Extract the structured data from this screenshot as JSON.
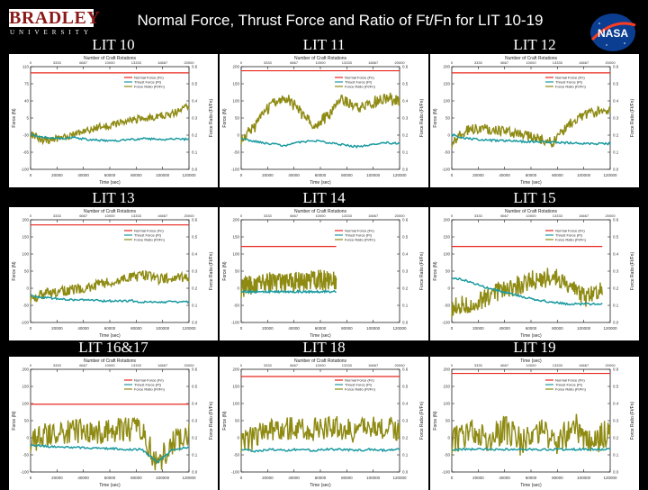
{
  "header": {
    "logo_word": "BRADLEY",
    "logo_sub": "UNIVERSITY",
    "title": "Normal Force, Thrust Force and Ratio of Ft/Fn for LIT 10-19",
    "nasa_text": "NASA"
  },
  "colors": {
    "normal_force": "#e8281e",
    "thrust_force": "#1a9aa0",
    "force_ratio": "#8e8a12",
    "background": "#000000",
    "plot_background": "#ffffff"
  },
  "chart_data": [
    {
      "label": "LIT 10",
      "type": "line",
      "top_axis": "Number of Craft Rotations",
      "xlabel": "Time (sec)",
      "ylabel": "Force (N)",
      "ylabel_right": "Force Ratio (Ft/Fn)",
      "legend": [
        "Normal Force (Fn)",
        "Thrust Force (Ft)",
        "Force Ratio (Ft/Fn)"
      ],
      "x": [
        0,
        120000
      ],
      "ylim": [
        -100,
        110
      ],
      "normal": 0.94,
      "thrust": [
        0.34,
        0.31,
        0.3,
        0.31,
        0.29,
        0.28,
        0.28,
        0.29,
        0.3,
        0.29,
        0.3,
        0.29
      ],
      "ratio": [
        0.34,
        0.28,
        0.3,
        0.34,
        0.38,
        0.42,
        0.44,
        0.48,
        0.5,
        0.52,
        0.55,
        0.62
      ],
      "noise": 0.035,
      "span": [
        0,
        1
      ]
    },
    {
      "label": "LIT 11",
      "type": "line",
      "top_axis": "Number of Craft Rotations",
      "xlabel": "Time (sec)",
      "ylabel": "Force (N)",
      "ylabel_right": "Force Ratio (Ft/Fn)",
      "legend": [
        "Normal Force (Fn)",
        "Thrust Force (Ft)",
        "Force Ratio (Ft/Fn)"
      ],
      "x": [
        0,
        120000
      ],
      "ylim": [
        -100,
        200
      ],
      "normal": 0.96,
      "thrust": [
        0.3,
        0.27,
        0.25,
        0.23,
        0.26,
        0.28,
        0.26,
        0.24,
        0.22,
        0.24,
        0.26,
        0.25
      ],
      "ratio": [
        0.3,
        0.42,
        0.62,
        0.72,
        0.58,
        0.42,
        0.52,
        0.68,
        0.6,
        0.64,
        0.7,
        0.66
      ],
      "noise": 0.06,
      "span": [
        0,
        1
      ]
    },
    {
      "label": "LIT 12",
      "type": "line",
      "top_axis": "Number of Craft Rotations",
      "xlabel": "Time (sec)",
      "ylabel": "Force (N)",
      "ylabel_right": "Force Ratio (Ft/Fn)",
      "legend": [
        "Normal Force (Fn)",
        "Thrust Force (Ft)",
        "Force Ratio (Ft/Fn)"
      ],
      "x": [
        0,
        120000
      ],
      "ylim": [
        -100,
        200
      ],
      "normal": 0.94,
      "thrust": [
        0.34,
        0.3,
        0.29,
        0.28,
        0.28,
        0.27,
        0.27,
        0.26,
        0.26,
        0.25,
        0.25,
        0.25
      ],
      "ratio": [
        0.26,
        0.38,
        0.4,
        0.38,
        0.36,
        0.34,
        0.3,
        0.26,
        0.42,
        0.52,
        0.56,
        0.58
      ],
      "noise": 0.05,
      "span": [
        0,
        1
      ]
    },
    {
      "label": "LIT 13",
      "type": "line",
      "top_axis": "Number of Craft Rotations",
      "xlabel": "Time (sec)",
      "ylabel": "Force (N)",
      "ylabel_right": "Force Ratio (Ft/Fn)",
      "legend": [
        "Normal Force (Fn)",
        "Thrust Force (Ft)",
        "Force Ratio (Ft/Fn)"
      ],
      "x": [
        0,
        120000
      ],
      "ylim": [
        -100,
        200
      ],
      "normal": 0.95,
      "thrust": [
        0.26,
        0.24,
        0.23,
        0.22,
        0.22,
        0.21,
        0.21,
        0.21,
        0.2,
        0.2,
        0.2,
        0.2
      ],
      "ratio": [
        0.24,
        0.28,
        0.3,
        0.32,
        0.34,
        0.38,
        0.4,
        0.44,
        0.46,
        0.42,
        0.44,
        0.44
      ],
      "noise": 0.05,
      "span": [
        0,
        1
      ]
    },
    {
      "label": "LIT 14",
      "type": "line",
      "top_axis": "Number of Craft Rotations",
      "xlabel": "Time (sec)",
      "ylabel": "Force (N)",
      "ylabel_right": "Force Ratio (Ft/Fn)",
      "legend": [
        "Normal Force (Fn)",
        "Thrust Force (Ft)",
        "Force Ratio (Ft/Fn)"
      ],
      "x": [
        0,
        120000
      ],
      "ylim": [
        -100,
        200
      ],
      "normal": 0.74,
      "thrust": [
        0.3,
        0.3,
        0.3,
        0.3,
        0.3
      ],
      "ratio": [
        0.34,
        0.4,
        0.38,
        0.42,
        0.4
      ],
      "noise": 0.1,
      "span": [
        0,
        0.6
      ]
    },
    {
      "label": "LIT 15",
      "type": "line",
      "top_axis": "Number of Craft Rotations",
      "xlabel": "Time (sec)",
      "ylabel": "Force (N)",
      "ylabel_right": "Force Ratio (Ft/Fn)",
      "legend": [
        "Normal Force (Fn)",
        "Thrust Force (Ft)",
        "Force Ratio (Ft/Fn)"
      ],
      "x": [
        0,
        120000
      ],
      "ylim": [
        -100,
        200
      ],
      "normal": 0.74,
      "thrust": [
        0.44,
        0.4,
        0.34,
        0.3,
        0.26,
        0.22,
        0.2,
        0.18,
        0.18,
        0.18
      ],
      "ratio": [
        0.14,
        0.18,
        0.24,
        0.3,
        0.36,
        0.42,
        0.44,
        0.38,
        0.24,
        0.3
      ],
      "noise": 0.1,
      "span": [
        0,
        0.95
      ]
    },
    {
      "label": "LIT 16&17",
      "type": "line",
      "top_axis": "Number of Craft Rotations",
      "xlabel": "Time (sec)",
      "ylabel": "Force (N)",
      "ylabel_right": "Force Ratio (Ft/Fn)",
      "legend": [
        "Normal Force (Fn)",
        "Thrust Force (Ft)",
        "Force Ratio (Ft/Fn)"
      ],
      "x": [
        0,
        120000
      ],
      "ylim": [
        -100,
        200
      ],
      "normal": 0.66,
      "thrust": [
        0.26,
        0.25,
        0.24,
        0.24,
        0.23,
        0.23,
        0.22,
        0.22,
        0.1,
        0.22,
        0.24
      ],
      "ratio": [
        0.3,
        0.36,
        0.38,
        0.4,
        0.38,
        0.4,
        0.42,
        0.4,
        0.08,
        0.3,
        0.36
      ],
      "noise": 0.12,
      "span": [
        0,
        1
      ]
    },
    {
      "label": "LIT 18",
      "type": "line",
      "top_axis": "Number of Craft Rotations",
      "xlabel": "Time (sec)",
      "ylabel": "Force (N)",
      "ylabel_right": "Force Ratio (Ft/Fn)",
      "legend": [
        "Normal Force (Fn)",
        "Thrust Force (Ft)",
        "Force Ratio (Ft/Fn)"
      ],
      "x": [
        0,
        120000
      ],
      "ylim": [
        -100,
        200
      ],
      "normal": 0.93,
      "thrust": [
        0.22,
        0.2,
        0.22,
        0.21,
        0.22,
        0.21,
        0.22,
        0.22,
        0.21,
        0.22,
        0.21,
        0.22
      ],
      "ratio": [
        0.3,
        0.34,
        0.4,
        0.44,
        0.42,
        0.42,
        0.44,
        0.42,
        0.4,
        0.42,
        0.44,
        0.42
      ],
      "noise": 0.12,
      "span": [
        0,
        1
      ]
    },
    {
      "label": "LIT 19",
      "type": "line",
      "top_axis": "Time (sec)",
      "xlabel": "Time (sec)",
      "ylabel": "Force (N)",
      "ylabel_right": "Force Ratio (Ft/Fn)",
      "legend": [
        "Normal Force (Fn)",
        "Thrust Force (Ft)",
        "Force Ratio (Ft/Fn)"
      ],
      "x": [
        0,
        120000
      ],
      "ylim": [
        -100,
        200
      ],
      "normal": 0.96,
      "thrust": [
        0.22,
        0.22,
        0.22,
        0.22,
        0.22,
        0.22,
        0.22,
        0.22,
        0.22,
        0.22
      ],
      "ratio": [
        0.3,
        0.4,
        0.3,
        0.42,
        0.28,
        0.4,
        0.3,
        0.44,
        0.28,
        0.4
      ],
      "noise": 0.14,
      "span": [
        0,
        1
      ]
    }
  ]
}
